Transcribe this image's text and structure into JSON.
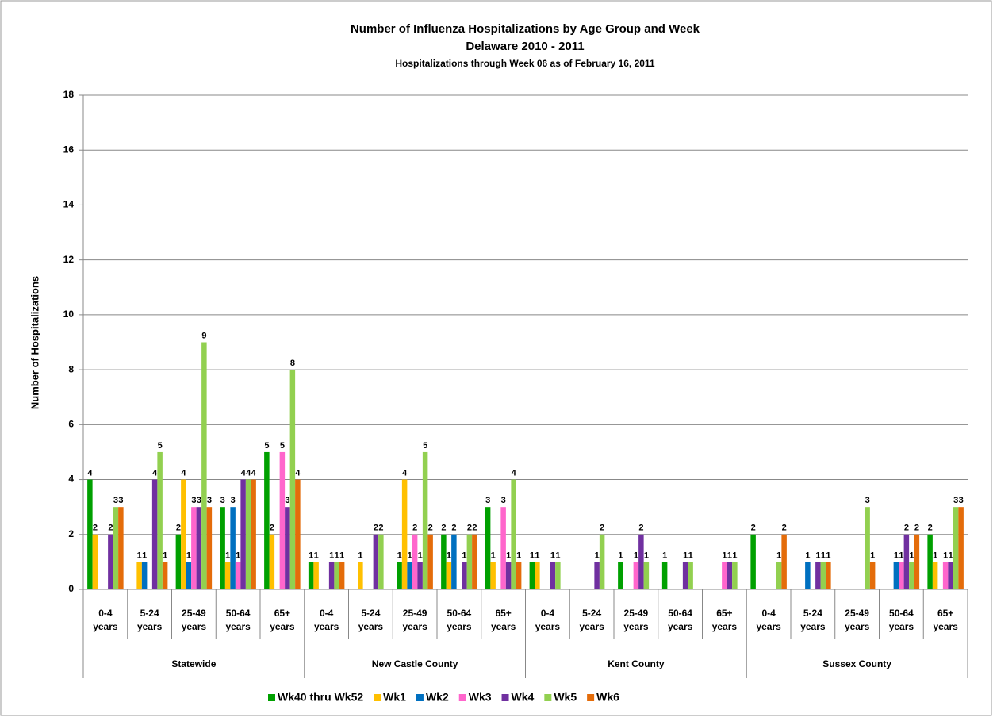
{
  "chart_data": {
    "type": "bar",
    "title": "Number of Influenza Hospitalizations by Age Group and Week",
    "subtitle": "Delaware 2010 - 2011",
    "note": "Hospitalizations through Week 06 as of February 16, 2011",
    "ylabel": "Number of Hospitalizations",
    "groups": [
      {
        "label": "Statewide",
        "categories": [
          "0-4 years",
          "5-24 years",
          "25-49 years",
          "50-64 years",
          "65+ years"
        ]
      },
      {
        "label": "New Castle County",
        "categories": [
          "0-4 years",
          "5-24 years",
          "25-49 years",
          "50-64 years",
          "65+ years"
        ]
      },
      {
        "label": "Kent County",
        "categories": [
          "0-4 years",
          "5-24 years",
          "25-49 years",
          "50-64 years",
          "65+ years"
        ]
      },
      {
        "label": "Sussex County",
        "categories": [
          "0-4 years",
          "5-24 years",
          "25-49 years",
          "50-64 years",
          "65+ years"
        ]
      }
    ],
    "series": [
      {
        "name": "Wk40 thru Wk52",
        "color": "#00a000",
        "values": [
          4,
          0,
          2,
          3,
          5,
          1,
          0,
          1,
          2,
          3,
          1,
          0,
          1,
          1,
          0,
          2,
          0,
          0,
          0,
          2
        ]
      },
      {
        "name": "Wk1",
        "color": "#ffc000",
        "values": [
          2,
          1,
          4,
          1,
          2,
          1,
          1,
          4,
          1,
          1,
          1,
          0,
          0,
          0,
          0,
          0,
          0,
          0,
          0,
          1
        ]
      },
      {
        "name": "Wk2",
        "color": "#0070c0",
        "values": [
          0,
          1,
          1,
          3,
          0,
          0,
          0,
          1,
          2,
          0,
          0,
          0,
          0,
          0,
          0,
          0,
          1,
          0,
          1,
          0
        ]
      },
      {
        "name": "Wk3",
        "color": "#ff66cc",
        "values": [
          0,
          0,
          3,
          1,
          5,
          0,
          0,
          2,
          0,
          3,
          0,
          0,
          1,
          0,
          1,
          0,
          0,
          0,
          1,
          1
        ]
      },
      {
        "name": "Wk4",
        "color": "#7030a0",
        "values": [
          2,
          4,
          3,
          4,
          3,
          1,
          2,
          1,
          1,
          1,
          1,
          1,
          2,
          1,
          1,
          0,
          1,
          0,
          2,
          1
        ]
      },
      {
        "name": "Wk5",
        "color": "#92d050",
        "values": [
          3,
          5,
          9,
          4,
          8,
          1,
          2,
          5,
          2,
          4,
          1,
          2,
          1,
          1,
          1,
          1,
          1,
          3,
          1,
          3
        ]
      },
      {
        "name": "Wk6",
        "color": "#e46c0a",
        "values": [
          3,
          1,
          3,
          4,
          4,
          1,
          0,
          2,
          2,
          1,
          0,
          0,
          0,
          0,
          0,
          2,
          1,
          1,
          2,
          3
        ]
      }
    ],
    "ylim": [
      0,
      18
    ],
    "yticks": [
      0,
      2,
      4,
      6,
      8,
      10,
      12,
      14,
      16,
      18
    ],
    "grid": true,
    "legend": "bottom"
  }
}
